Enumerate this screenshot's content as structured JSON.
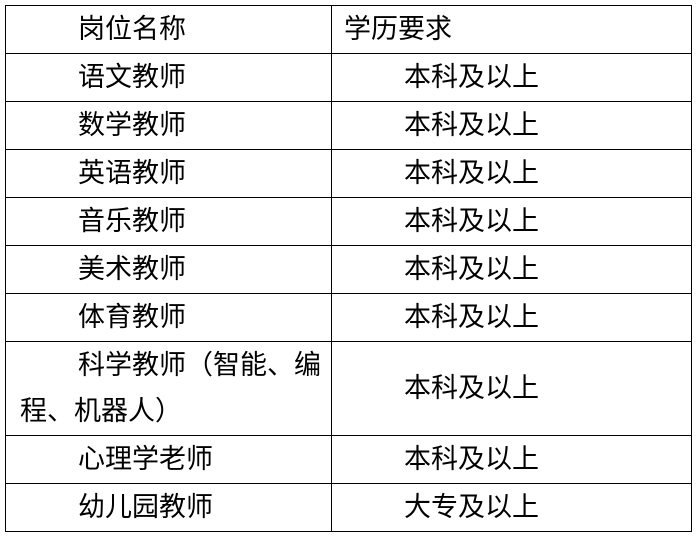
{
  "table": {
    "headers": [
      "岗位名称",
      "学历要求"
    ],
    "rows": [
      {
        "position": "语文教师",
        "education": "本科及以上"
      },
      {
        "position": "数学教师",
        "education": "本科及以上"
      },
      {
        "position": "英语教师",
        "education": "本科及以上"
      },
      {
        "position": "音乐教师",
        "education": "本科及以上"
      },
      {
        "position": "美术教师",
        "education": "本科及以上"
      },
      {
        "position": "体育教师",
        "education": "本科及以上"
      },
      {
        "position": "科学教师（智能、编程、机器人）",
        "education": "本科及以上"
      },
      {
        "position": "心理学老师",
        "education": "本科及以上"
      },
      {
        "position": "幼儿园教师",
        "education": "大专及以上"
      }
    ]
  }
}
